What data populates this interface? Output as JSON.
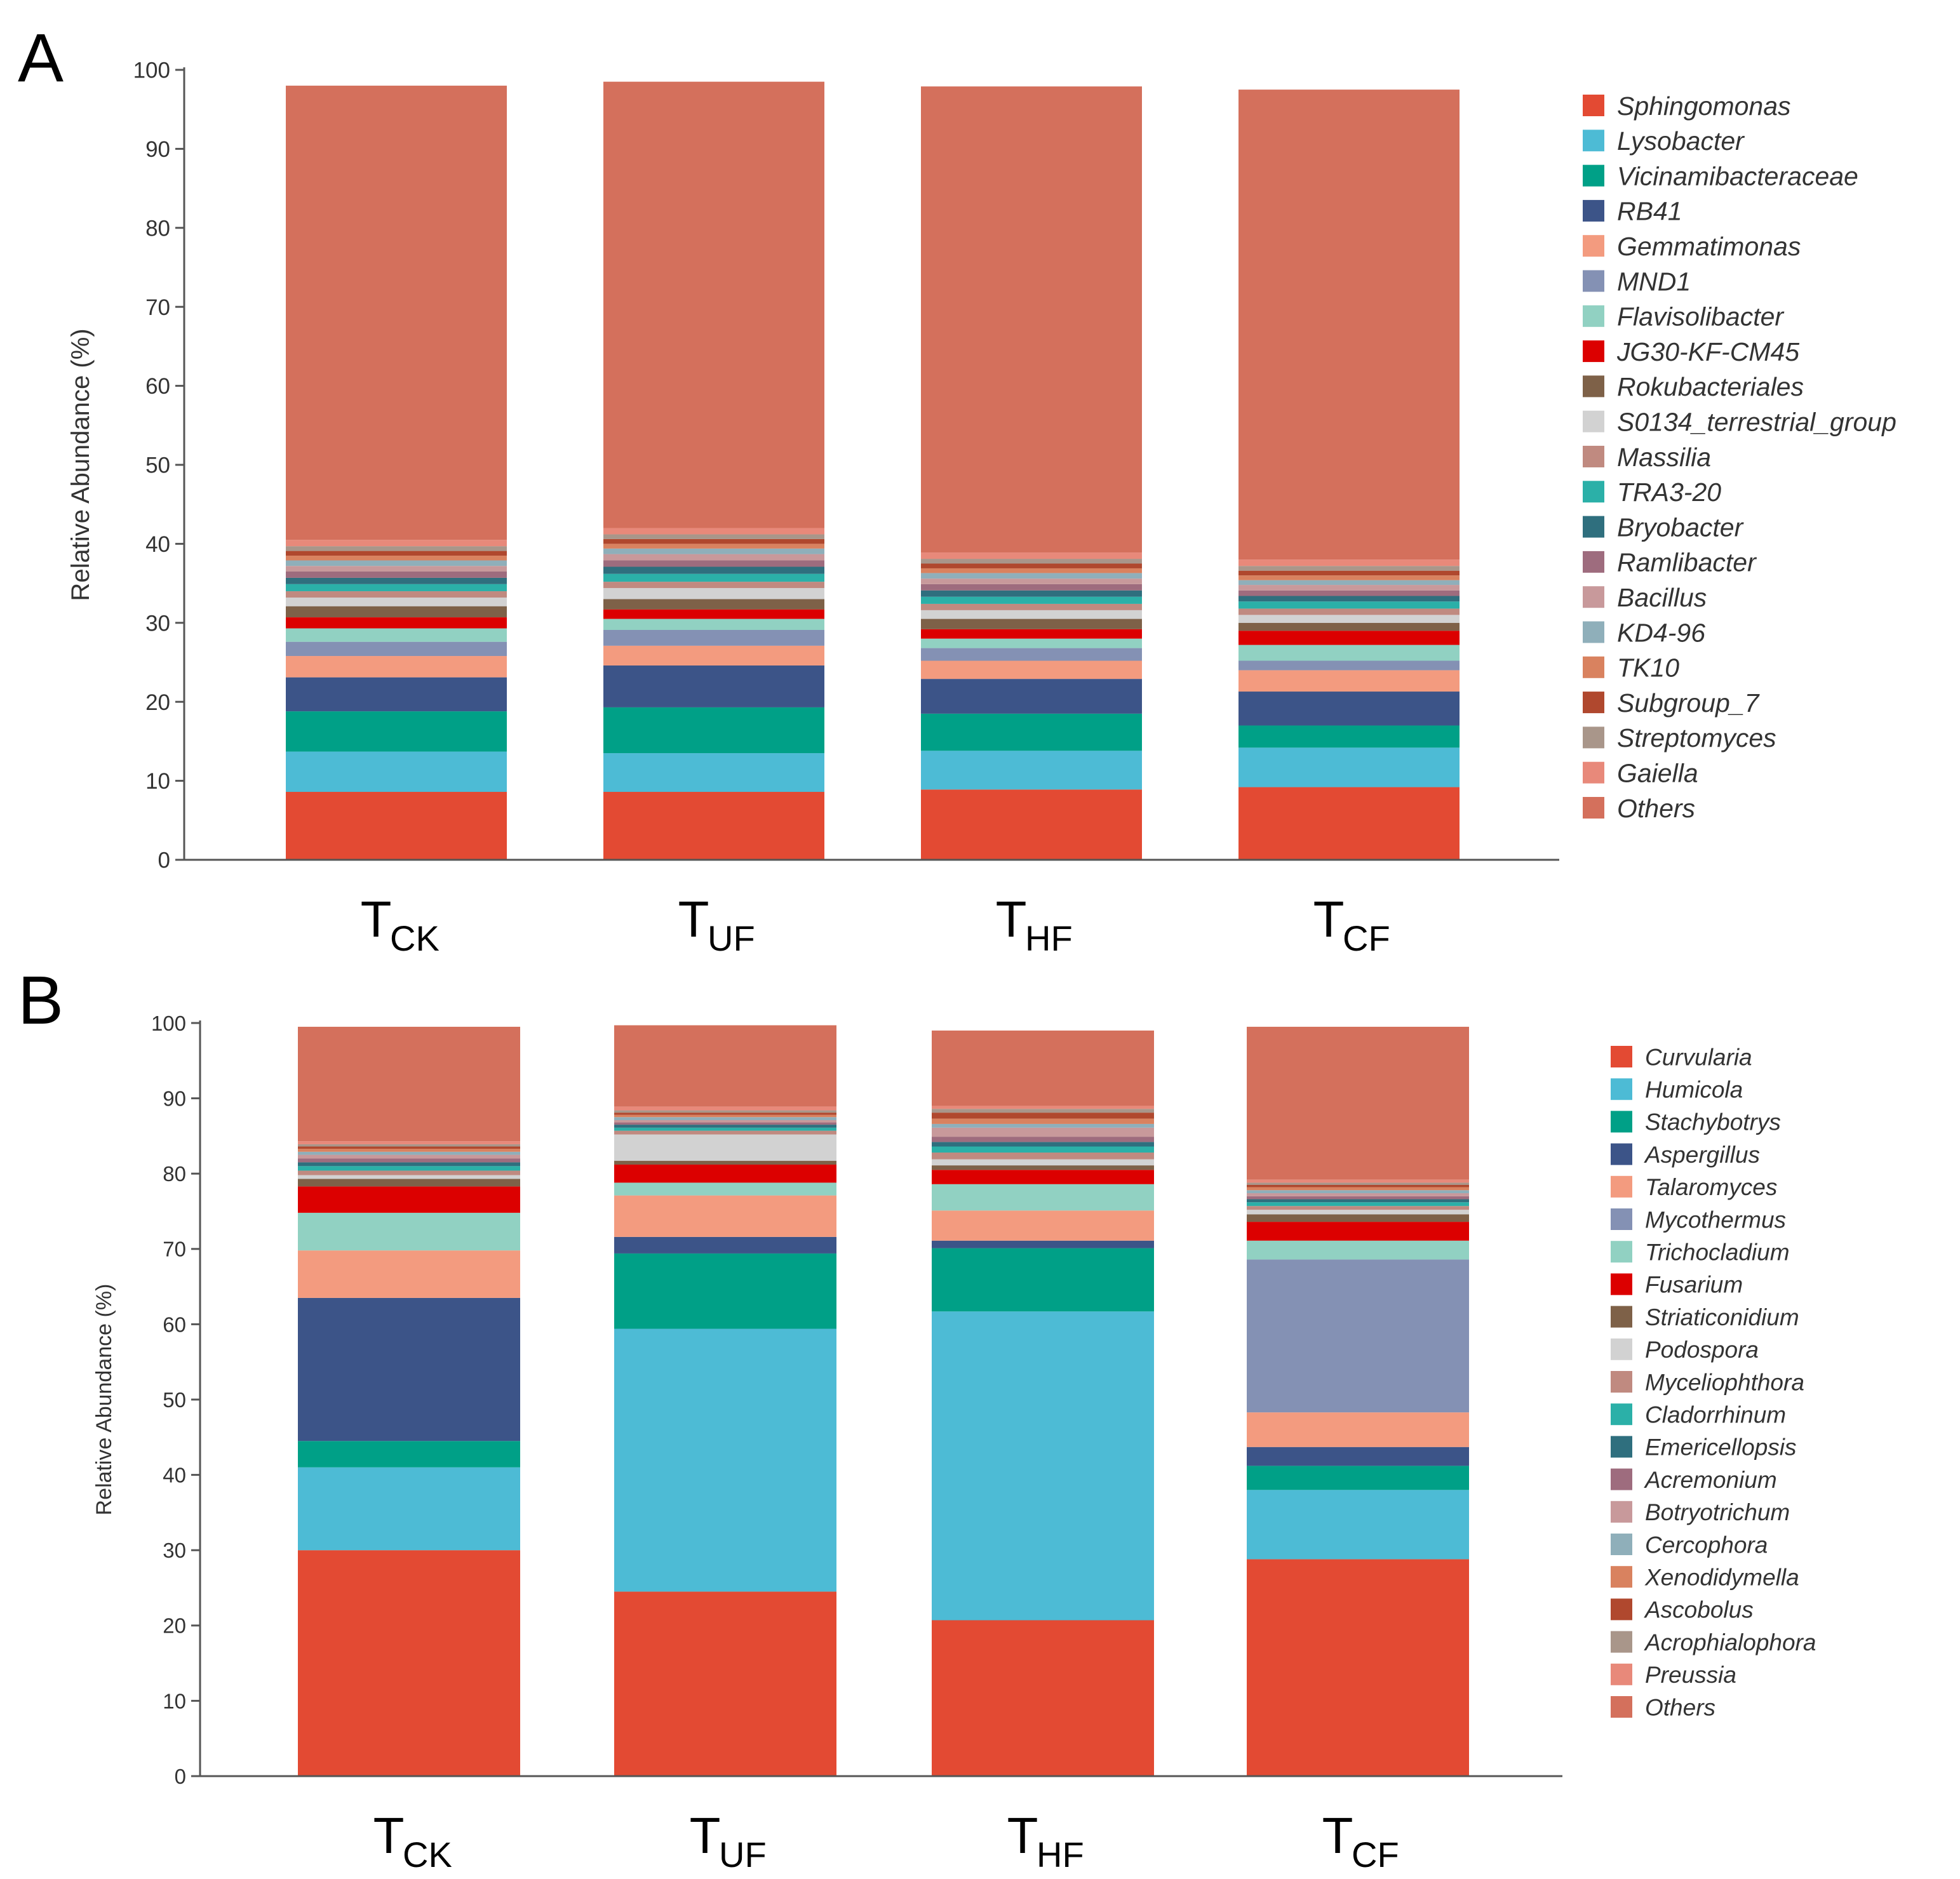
{
  "chart_data": [
    {
      "type": "bar",
      "stacked": true,
      "panel_label": "A",
      "ylabel": "Relative Abundance (%)",
      "ylim": [
        0,
        100
      ],
      "yticks": [
        "0",
        "10",
        "20",
        "30",
        "40",
        "50",
        "60",
        "70",
        "80",
        "90",
        "100"
      ],
      "categories": [
        {
          "main": "T",
          "sub": "CK"
        },
        {
          "main": "T",
          "sub": "UF"
        },
        {
          "main": "T",
          "sub": "HF"
        },
        {
          "main": "T",
          "sub": "CF"
        }
      ],
      "series": [
        {
          "name": "Sphingomonas",
          "color": "#E34A33",
          "values": [
            8.6,
            8.6,
            8.9,
            9.2
          ]
        },
        {
          "name": "Lysobacter",
          "color": "#4DBBD5",
          "values": [
            5.1,
            4.9,
            4.9,
            5.0
          ]
        },
        {
          "name": "Vicinamibacteraceae",
          "color": "#00A087",
          "values": [
            5.1,
            5.8,
            4.7,
            2.8
          ]
        },
        {
          "name": "RB41",
          "color": "#3C5488",
          "values": [
            4.3,
            5.3,
            4.4,
            4.3
          ]
        },
        {
          "name": "Gemmatimonas",
          "color": "#F39B7F",
          "values": [
            2.7,
            2.5,
            2.3,
            2.7
          ]
        },
        {
          "name": "MND1",
          "color": "#8491B4",
          "values": [
            1.8,
            2.0,
            1.6,
            1.2
          ]
        },
        {
          "name": "Flavisolibacter",
          "color": "#91D1C2",
          "values": [
            1.7,
            1.4,
            1.2,
            2.0
          ]
        },
        {
          "name": "JG30-KF-CM45",
          "color": "#DC0000",
          "values": [
            1.4,
            1.2,
            1.2,
            1.8
          ]
        },
        {
          "name": "Rokubacteriales",
          "color": "#7E6148",
          "values": [
            1.4,
            1.3,
            1.3,
            1.0
          ]
        },
        {
          "name": "S0134_terrestrial_group",
          "color": "#D2D2D2",
          "values": [
            1.1,
            1.4,
            1.1,
            1.0
          ]
        },
        {
          "name": "Massilia",
          "color": "#C08A80",
          "values": [
            0.8,
            0.8,
            0.8,
            0.8
          ]
        },
        {
          "name": "TRA3-20",
          "color": "#2BB0A8",
          "values": [
            0.9,
            1.0,
            0.9,
            0.9
          ]
        },
        {
          "name": "Bryobacter",
          "color": "#2F6F7E",
          "values": [
            0.8,
            0.9,
            0.8,
            0.7
          ]
        },
        {
          "name": "Ramlibacter",
          "color": "#9E6C7E",
          "values": [
            0.8,
            0.8,
            0.8,
            0.7
          ]
        },
        {
          "name": "Bacillus",
          "color": "#C8999B",
          "values": [
            0.7,
            0.8,
            0.7,
            0.7
          ]
        },
        {
          "name": "KD4-96",
          "color": "#8FAFBA",
          "values": [
            0.7,
            0.7,
            0.7,
            0.6
          ]
        },
        {
          "name": "TK10",
          "color": "#D9825F",
          "values": [
            0.6,
            0.6,
            0.6,
            0.6
          ]
        },
        {
          "name": "Subgroup_7",
          "color": "#B0482E",
          "values": [
            0.6,
            0.6,
            0.6,
            0.6
          ]
        },
        {
          "name": "Streptomyces",
          "color": "#A9968A",
          "values": [
            0.6,
            0.6,
            0.6,
            0.6
          ]
        },
        {
          "name": "Gaiella",
          "color": "#E8897A",
          "values": [
            0.8,
            0.8,
            0.8,
            0.8
          ]
        },
        {
          "name": "Others",
          "color": "#D4705C",
          "values": [
            57.5,
            56.5,
            59.0,
            59.5
          ]
        }
      ]
    },
    {
      "type": "bar",
      "stacked": true,
      "panel_label": "B",
      "ylabel": "Relative Abundance (%)",
      "ylim": [
        0,
        100
      ],
      "yticks": [
        "0",
        "10",
        "20",
        "30",
        "40",
        "50",
        "60",
        "70",
        "80",
        "90",
        "100"
      ],
      "categories": [
        {
          "main": "T",
          "sub": "CK"
        },
        {
          "main": "T",
          "sub": "UF"
        },
        {
          "main": "T",
          "sub": "HF"
        },
        {
          "main": "T",
          "sub": "CF"
        }
      ],
      "series": [
        {
          "name": "Curvularia",
          "color": "#E34A33",
          "values": [
            30.0,
            24.5,
            20.7,
            28.8
          ]
        },
        {
          "name": "Humicola",
          "color": "#4DBBD5",
          "values": [
            11.0,
            34.9,
            41.0,
            9.2
          ]
        },
        {
          "name": "Stachybotrys",
          "color": "#00A087",
          "values": [
            3.5,
            10.0,
            8.4,
            3.2
          ]
        },
        {
          "name": "Aspergillus",
          "color": "#3C5488",
          "values": [
            19.0,
            2.2,
            1.0,
            2.5
          ]
        },
        {
          "name": "Talaromyces",
          "color": "#F39B7F",
          "values": [
            6.3,
            5.5,
            4.0,
            4.6
          ]
        },
        {
          "name": "Mycothermus",
          "color": "#8491B4",
          "values": [
            0.0,
            0.0,
            0.0,
            20.3
          ]
        },
        {
          "name": "Trichocladium",
          "color": "#91D1C2",
          "values": [
            5.0,
            1.7,
            3.5,
            2.5
          ]
        },
        {
          "name": "Fusarium",
          "color": "#DC0000",
          "values": [
            3.5,
            2.4,
            1.9,
            2.5
          ]
        },
        {
          "name": "Striaticonidium",
          "color": "#7E6148",
          "values": [
            1.0,
            0.5,
            0.6,
            1.0
          ]
        },
        {
          "name": "Podospora",
          "color": "#D2D2D2",
          "values": [
            0.5,
            3.5,
            0.8,
            0.6
          ]
        },
        {
          "name": "Myceliophthora",
          "color": "#C08A80",
          "values": [
            0.6,
            0.5,
            0.9,
            0.5
          ]
        },
        {
          "name": "Cladorrhinum",
          "color": "#2BB0A8",
          "values": [
            0.6,
            0.4,
            0.8,
            0.5
          ]
        },
        {
          "name": "Emericellopsis",
          "color": "#2F6F7E",
          "values": [
            0.5,
            0.4,
            0.6,
            0.4
          ]
        },
        {
          "name": "Acremonium",
          "color": "#9E6C7E",
          "values": [
            0.5,
            0.3,
            0.7,
            0.4
          ]
        },
        {
          "name": "Botryotrichum",
          "color": "#C8999B",
          "values": [
            0.5,
            0.3,
            1.2,
            0.4
          ]
        },
        {
          "name": "Cercophora",
          "color": "#8FAFBA",
          "values": [
            0.4,
            0.4,
            0.5,
            0.4
          ]
        },
        {
          "name": "Xenodidymella",
          "color": "#D9825F",
          "values": [
            0.4,
            0.3,
            0.7,
            0.4
          ]
        },
        {
          "name": "Ascobolus",
          "color": "#B0482E",
          "values": [
            0.3,
            0.3,
            0.8,
            0.3
          ]
        },
        {
          "name": "Acrophialophora",
          "color": "#A9968A",
          "values": [
            0.3,
            0.3,
            0.5,
            0.3
          ]
        },
        {
          "name": "Preussia",
          "color": "#E8897A",
          "values": [
            0.4,
            0.5,
            0.4,
            0.4
          ]
        },
        {
          "name": "Others",
          "color": "#D4705C",
          "values": [
            15.2,
            10.8,
            10.0,
            20.3
          ]
        }
      ]
    }
  ]
}
